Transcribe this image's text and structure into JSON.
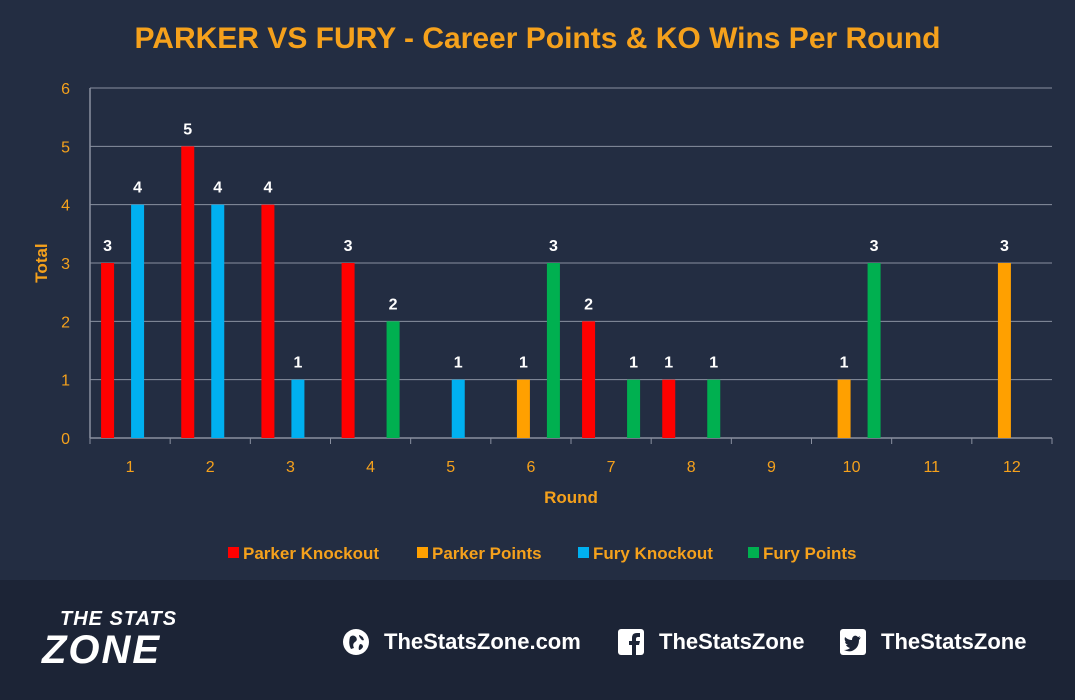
{
  "chart_data": {
    "type": "bar",
    "title": "PARKER VS FURY - Career Points & KO Wins Per Round",
    "xlabel": "Round",
    "ylabel": "Total",
    "categories": [
      "1",
      "2",
      "3",
      "4",
      "5",
      "6",
      "7",
      "8",
      "9",
      "10",
      "11",
      "12"
    ],
    "ylim": [
      0,
      6
    ],
    "yticks": [
      0,
      1,
      2,
      3,
      4,
      5,
      6
    ],
    "grid": true,
    "legend_position": "bottom",
    "series": [
      {
        "name": "Parker Knockout",
        "color": "#ff0000",
        "values": [
          3,
          5,
          4,
          3,
          0,
          0,
          2,
          1,
          0,
          0,
          0,
          0
        ]
      },
      {
        "name": "Parker Points",
        "color": "#ffa000",
        "values": [
          0,
          0,
          0,
          0,
          0,
          1,
          0,
          0,
          0,
          1,
          0,
          3
        ]
      },
      {
        "name": "Fury Knockout",
        "color": "#00b0f0",
        "values": [
          4,
          4,
          1,
          0,
          1,
          0,
          0,
          0,
          0,
          0,
          0,
          0
        ]
      },
      {
        "name": "Fury Points",
        "color": "#00b050",
        "values": [
          0,
          0,
          0,
          2,
          0,
          3,
          1,
          1,
          0,
          3,
          0,
          0
        ]
      }
    ]
  },
  "colors": {
    "background": "#232d42",
    "accent": "#f5a11c",
    "grid": "#8a90a0",
    "label": "#ffffff"
  },
  "footer": {
    "logo_line1": "THE STATS",
    "logo_line2": "ZONE",
    "website": "TheStatsZone.com",
    "facebook": "TheStatsZone",
    "twitter": "TheStatsZone",
    "website_icon": "globe-icon",
    "facebook_icon": "facebook-icon",
    "twitter_icon": "twitter-icon"
  }
}
